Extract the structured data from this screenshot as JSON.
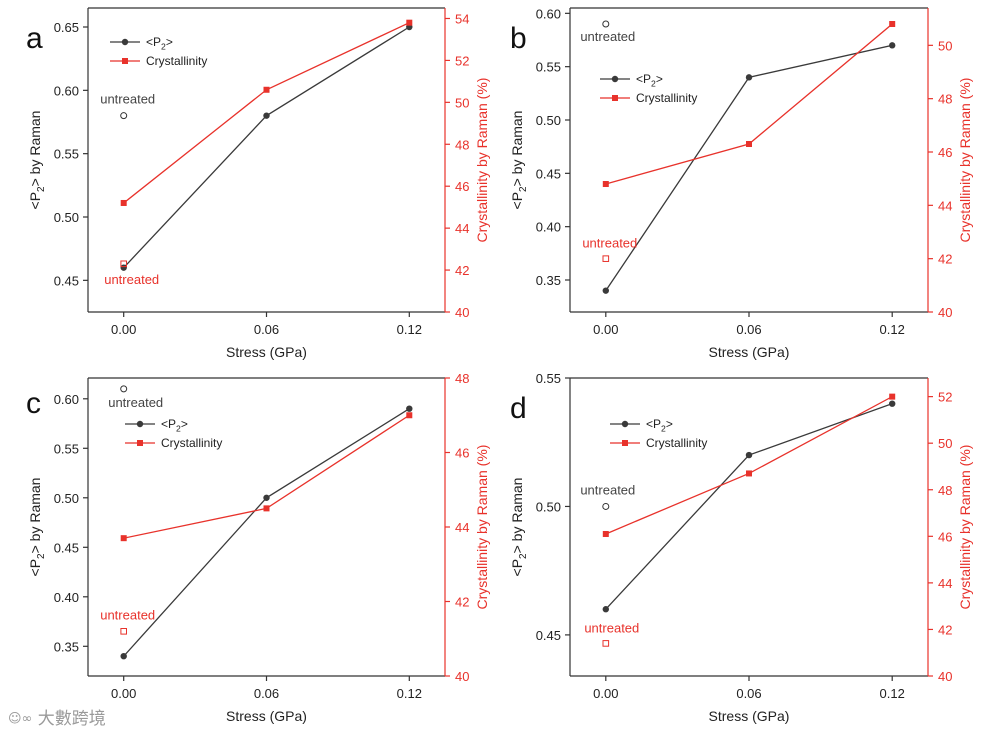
{
  "chart_data": [
    {
      "panel": "a",
      "type": "line",
      "xlabel": "Stress (GPa)",
      "ylabel_left": "<P2> by Raman",
      "ylabel_right": "Crystallinity by Raman (%)",
      "x": [
        0.0,
        0.06,
        0.12
      ],
      "xticks": [
        "0.00",
        "0.06",
        "0.12"
      ],
      "ylim_left": [
        0.425,
        0.665
      ],
      "yticks_left": [
        "0.45",
        "0.50",
        "0.55",
        "0.60",
        "0.65"
      ],
      "ylim_right": [
        40,
        54.5
      ],
      "yticks_right": [
        "40",
        "42",
        "44",
        "46",
        "48",
        "50",
        "52",
        "54"
      ],
      "series": [
        {
          "name": "<P2>",
          "axis": "left",
          "color": "#3a3a3a",
          "values": [
            0.46,
            0.58,
            0.65
          ]
        },
        {
          "name": "Crystallinity",
          "axis": "right",
          "color": "#e8322b",
          "values": [
            45.2,
            50.6,
            53.8
          ]
        }
      ],
      "legend": {
        "p2_prefix": "<P",
        "p2_sub": "2",
        "p2_suffix": ">",
        "crystallinity": "Crystallinity"
      },
      "untreated": {
        "label": "untreated",
        "p2": 0.58,
        "crystallinity": 42.3
      }
    },
    {
      "panel": "b",
      "type": "line",
      "xlabel": "Stress (GPa)",
      "ylabel_left": "<P2> by Raman",
      "ylabel_right": "Crystallinity by Raman (%)",
      "x": [
        0.0,
        0.06,
        0.12
      ],
      "xticks": [
        "0.00",
        "0.06",
        "0.12"
      ],
      "ylim_left": [
        0.32,
        0.605
      ],
      "yticks_left": [
        "0.35",
        "0.40",
        "0.45",
        "0.50",
        "0.55",
        "0.60"
      ],
      "ylim_right": [
        40,
        51.4
      ],
      "yticks_right": [
        "40",
        "42",
        "44",
        "46",
        "48",
        "50"
      ],
      "series": [
        {
          "name": "<P2>",
          "axis": "left",
          "color": "#3a3a3a",
          "values": [
            0.34,
            0.54,
            0.57
          ]
        },
        {
          "name": "Crystallinity",
          "axis": "right",
          "color": "#e8322b",
          "values": [
            44.8,
            46.3,
            50.8
          ]
        }
      ],
      "legend": {
        "p2_prefix": "<P",
        "p2_sub": "2",
        "p2_suffix": ">",
        "crystallinity": "Crystallinity"
      },
      "untreated": {
        "label": "untreated",
        "p2": 0.59,
        "crystallinity": 42.0
      }
    },
    {
      "panel": "c",
      "type": "line",
      "xlabel": "Stress (GPa)",
      "ylabel_left": "<P2> by Raman",
      "ylabel_right": "Crystallinity by Raman (%)",
      "x": [
        0.0,
        0.06,
        0.12
      ],
      "xticks": [
        "0.00",
        "0.06",
        "0.12"
      ],
      "ylim_left": [
        0.32,
        0.621
      ],
      "yticks_left": [
        "0.35",
        "0.40",
        "0.45",
        "0.50",
        "0.55",
        "0.60"
      ],
      "ylim_right": [
        40,
        48
      ],
      "yticks_right": [
        "40",
        "42",
        "44",
        "46",
        "48"
      ],
      "series": [
        {
          "name": "<P2>",
          "axis": "left",
          "color": "#3a3a3a",
          "values": [
            0.34,
            0.5,
            0.59
          ]
        },
        {
          "name": "Crystallinity",
          "axis": "right",
          "color": "#e8322b",
          "values": [
            43.7,
            44.5,
            47.0
          ]
        }
      ],
      "legend": {
        "p2_prefix": "<P",
        "p2_sub": "2",
        "p2_suffix": ">",
        "crystallinity": "Crystallinity"
      },
      "untreated": {
        "label": "untreated",
        "p2": 0.61,
        "crystallinity": 41.2
      }
    },
    {
      "panel": "d",
      "type": "line",
      "xlabel": "Stress (GPa)",
      "ylabel_left": "<P2> by Raman",
      "ylabel_right": "Crystallinity by Raman (%)",
      "x": [
        0.0,
        0.06,
        0.12
      ],
      "xticks": [
        "0.00",
        "0.06",
        "0.12"
      ],
      "ylim_left": [
        0.434,
        0.55
      ],
      "yticks_left": [
        "0.45",
        "0.50",
        "0.55"
      ],
      "ylim_right": [
        40,
        52.8
      ],
      "yticks_right": [
        "40",
        "42",
        "44",
        "46",
        "48",
        "50",
        "52"
      ],
      "series": [
        {
          "name": "<P2>",
          "axis": "left",
          "color": "#3a3a3a",
          "values": [
            0.46,
            0.52,
            0.54
          ]
        },
        {
          "name": "Crystallinity",
          "axis": "right",
          "color": "#e8322b",
          "values": [
            46.1,
            48.7,
            52.0
          ]
        }
      ],
      "legend": {
        "p2_prefix": "<P",
        "p2_sub": "2",
        "p2_suffix": ">",
        "crystallinity": "Crystallinity"
      },
      "untreated": {
        "label": "untreated",
        "p2": 0.5,
        "crystallinity": 41.4
      }
    }
  ],
  "watermark": "大數跨境",
  "colors": {
    "p2": "#3a3a3a",
    "crystallinity": "#e8322b",
    "axis": "#333333",
    "untreated_text": "#444444"
  }
}
